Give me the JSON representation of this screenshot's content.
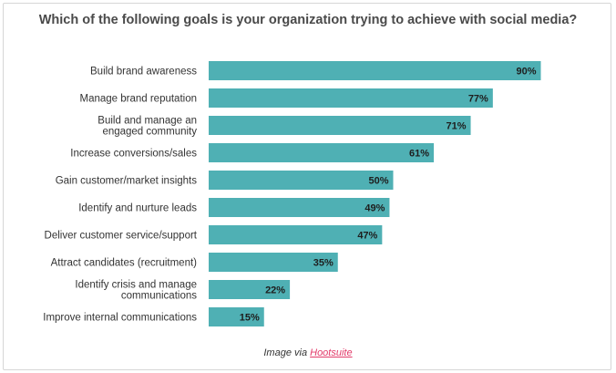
{
  "chart_data": {
    "type": "bar",
    "orientation": "horizontal",
    "title": "Which of the following goals is your organization trying to achieve with social media?",
    "categories": [
      "Build brand awareness",
      "Manage brand reputation",
      "Build and manage an engaged community",
      "Increase conversions/sales",
      "Gain customer/market insights",
      "Identify and nurture leads",
      "Deliver customer service/support",
      "Attract candidates (recruitment)",
      "Identify crisis and manage communications",
      "Improve internal communications"
    ],
    "category_lines": [
      [
        "Build brand awareness"
      ],
      [
        "Manage brand reputation"
      ],
      [
        "Build and manage an",
        "engaged community"
      ],
      [
        "Increase conversions/sales"
      ],
      [
        "Gain customer/market insights"
      ],
      [
        "Identify and nurture leads"
      ],
      [
        "Deliver customer service/support"
      ],
      [
        "Attract candidates (recruitment)"
      ],
      [
        "Identify crisis and manage",
        "communications"
      ],
      [
        "Improve internal communications"
      ]
    ],
    "values": [
      90,
      77,
      71,
      61,
      50,
      49,
      47,
      35,
      22,
      15
    ],
    "value_labels": [
      "90%",
      "77%",
      "71%",
      "61%",
      "50%",
      "49%",
      "47%",
      "35%",
      "22%",
      "15%"
    ],
    "xlim": [
      0,
      100
    ],
    "xlabel": "",
    "ylabel": "",
    "grid": false,
    "legend": "none",
    "bar_color": "#4fb0b4"
  },
  "caption": {
    "prefix": "Image via ",
    "link": "Hootsuite"
  }
}
